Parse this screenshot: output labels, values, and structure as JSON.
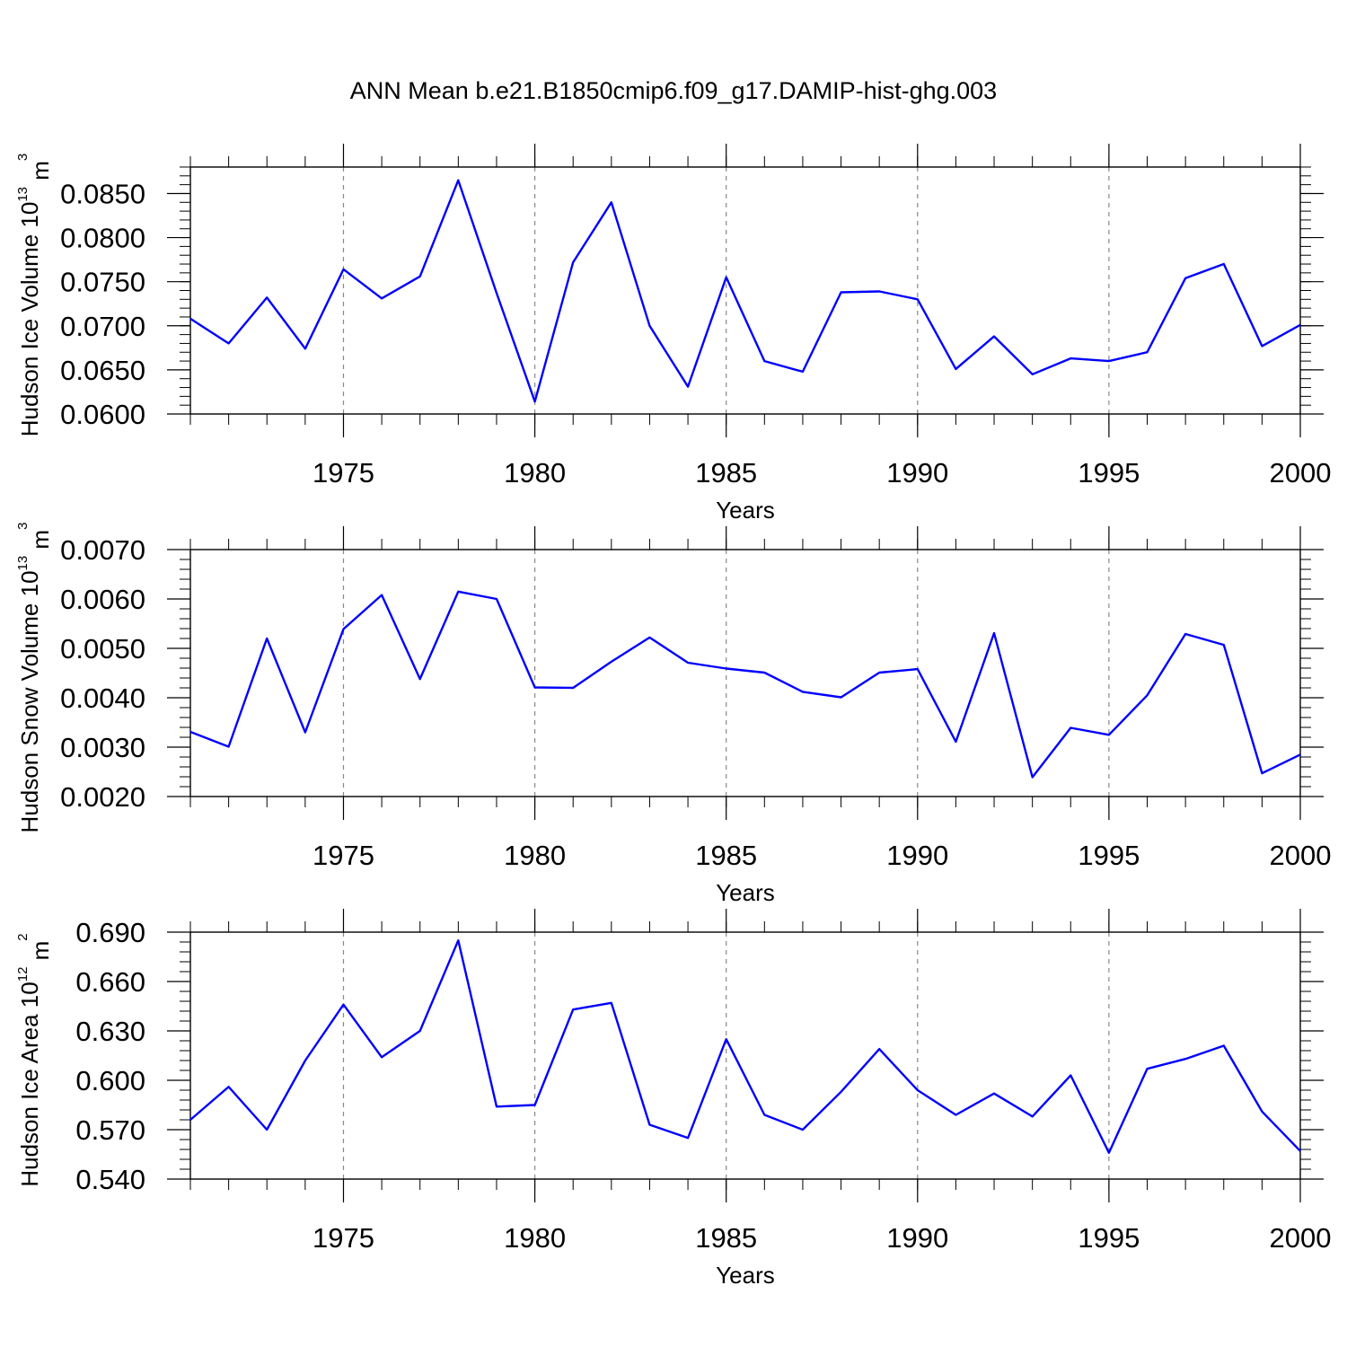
{
  "figure": {
    "title": "ANN Mean b.e21.B1850cmip6.f09_g17.DAMIP-hist-ghg.003"
  },
  "colors": {
    "line": "#0000ff",
    "axis": "#000000",
    "grid": "#888888"
  },
  "chart_data": [
    {
      "type": "line",
      "xlabel": "Years",
      "ylabel": {
        "name": "Hudson Ice Volume 10",
        "exp": "13",
        "unit": " m",
        "unit_exp": "3"
      },
      "xlim": [
        1971,
        2000
      ],
      "ylim": [
        0.06,
        0.088
      ],
      "x_ticks": [
        "1975",
        "1980",
        "1985",
        "1990",
        "1995",
        "2000"
      ],
      "y_ticks": [
        "0.0600",
        "0.0650",
        "0.0700",
        "0.0750",
        "0.0800",
        "0.0850"
      ],
      "grid": "vertical dashed at major x ticks",
      "x": [
        1971,
        1972,
        1973,
        1974,
        1975,
        1976,
        1977,
        1978,
        1979,
        1980,
        1981,
        1982,
        1983,
        1984,
        1985,
        1986,
        1987,
        1988,
        1989,
        1990,
        1991,
        1992,
        1993,
        1994,
        1995,
        1996,
        1997,
        1998,
        1999,
        2000
      ],
      "values": [
        0.0708,
        0.068,
        0.0732,
        0.0674,
        0.0764,
        0.0731,
        0.0756,
        0.0865,
        0.0737,
        0.0614,
        0.0772,
        0.084,
        0.07,
        0.0631,
        0.0755,
        0.066,
        0.0648,
        0.0738,
        0.0739,
        0.073,
        0.0651,
        0.0688,
        0.0645,
        0.0663,
        0.066,
        0.067,
        0.0754,
        0.077,
        0.0677,
        0.0701
      ]
    },
    {
      "type": "line",
      "xlabel": "Years",
      "ylabel": {
        "name": "Hudson Snow Volume 10",
        "exp": "13",
        "unit": " m",
        "unit_exp": "3"
      },
      "xlim": [
        1971,
        2000
      ],
      "ylim": [
        0.002,
        0.007
      ],
      "x_ticks": [
        "1975",
        "1980",
        "1985",
        "1990",
        "1995",
        "2000"
      ],
      "y_ticks": [
        "0.0020",
        "0.0030",
        "0.0040",
        "0.0050",
        "0.0060",
        "0.0070"
      ],
      "grid": "vertical dashed at major x ticks",
      "x": [
        1971,
        1972,
        1973,
        1974,
        1975,
        1976,
        1977,
        1978,
        1979,
        1980,
        1981,
        1982,
        1983,
        1984,
        1985,
        1986,
        1987,
        1988,
        1989,
        1990,
        1991,
        1992,
        1993,
        1994,
        1995,
        1996,
        1997,
        1998,
        1999,
        2000
      ],
      "values": [
        0.00331,
        0.00301,
        0.0052,
        0.0033,
        0.00539,
        0.00608,
        0.00438,
        0.00615,
        0.006,
        0.00421,
        0.0042,
        0.00473,
        0.00522,
        0.00471,
        0.00459,
        0.00451,
        0.00412,
        0.00401,
        0.00451,
        0.00458,
        0.00311,
        0.00531,
        0.00239,
        0.00339,
        0.00325,
        0.00405,
        0.00529,
        0.00507,
        0.00247,
        0.00285
      ]
    },
    {
      "type": "line",
      "xlabel": "Years",
      "ylabel": {
        "name": "Hudson Ice Area 10",
        "exp": "12",
        "unit": " m",
        "unit_exp": "2"
      },
      "xlim": [
        1971,
        2000
      ],
      "ylim": [
        0.54,
        0.69
      ],
      "x_ticks": [
        "1975",
        "1980",
        "1985",
        "1990",
        "1995",
        "2000"
      ],
      "y_ticks": [
        "0.540",
        "0.570",
        "0.600",
        "0.630",
        "0.660",
        "0.690"
      ],
      "grid": "vertical dashed at major x ticks",
      "x": [
        1971,
        1972,
        1973,
        1974,
        1975,
        1976,
        1977,
        1978,
        1979,
        1980,
        1981,
        1982,
        1983,
        1984,
        1985,
        1986,
        1987,
        1988,
        1989,
        1990,
        1991,
        1992,
        1993,
        1994,
        1995,
        1996,
        1997,
        1998,
        1999,
        2000
      ],
      "values": [
        0.576,
        0.596,
        0.57,
        0.612,
        0.646,
        0.614,
        0.63,
        0.685,
        0.584,
        0.585,
        0.643,
        0.647,
        0.573,
        0.565,
        0.625,
        0.579,
        0.57,
        0.593,
        0.619,
        0.594,
        0.579,
        0.592,
        0.578,
        0.603,
        0.556,
        0.607,
        0.613,
        0.621,
        0.581,
        0.557
      ]
    }
  ]
}
